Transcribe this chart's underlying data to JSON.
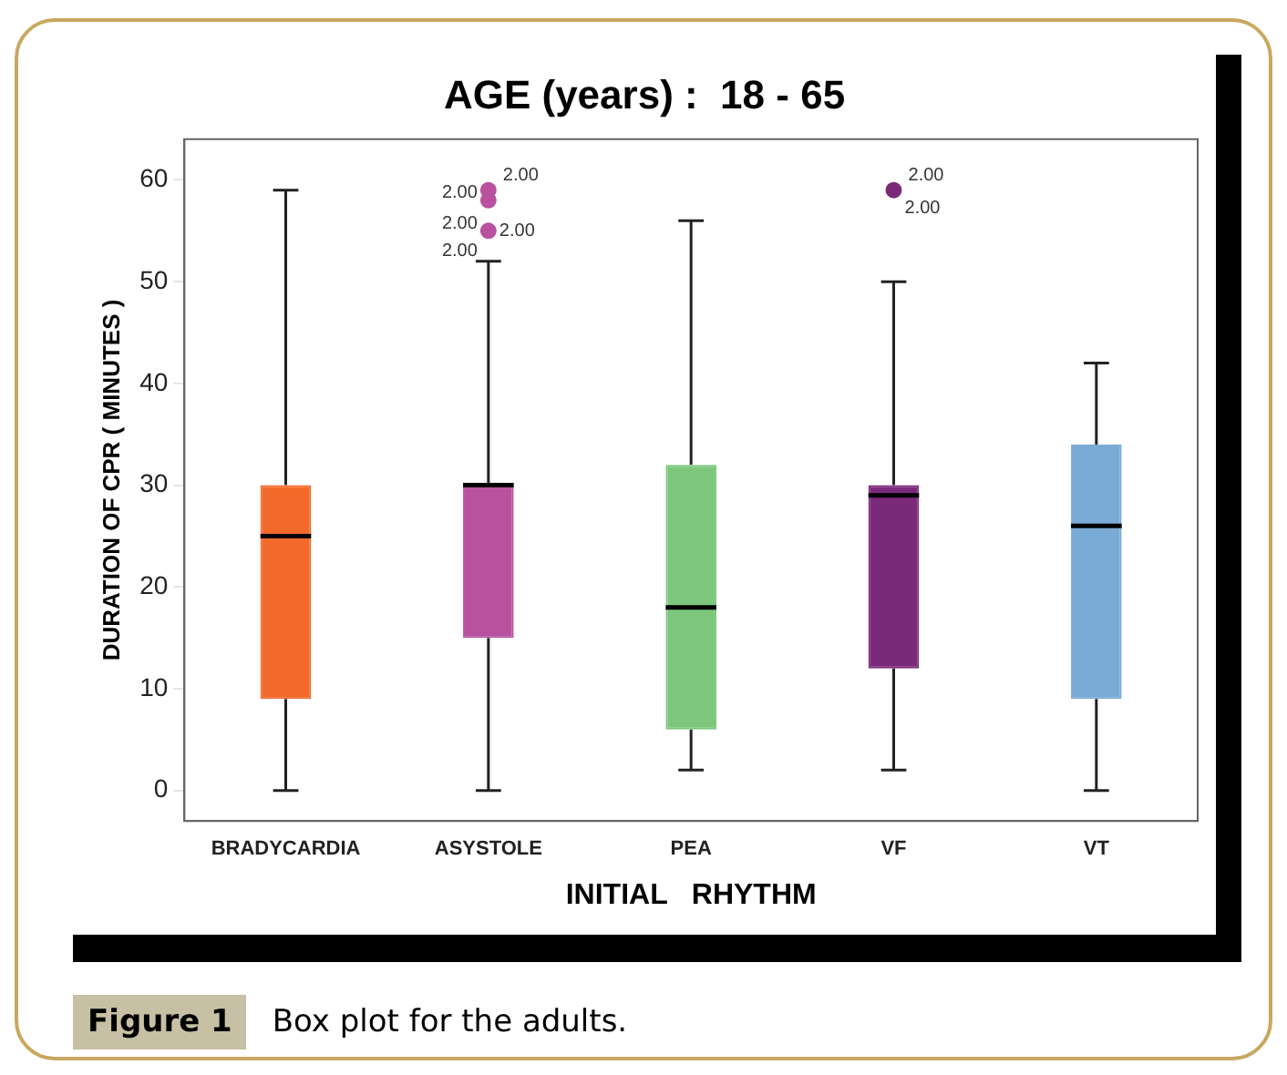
{
  "chart_data": {
    "type": "box",
    "title": "AGE (years) :  18 - 65",
    "xlabel": "INITIAL   RHYTHM",
    "ylabel": "DURATION OF CPR ( MINUTES )",
    "categories": [
      "BRADYCARDIA",
      "ASYSTOLE",
      "PEA",
      "VF",
      "VT"
    ],
    "boxes": [
      {
        "low": 0,
        "q1": 9,
        "median": 25,
        "q3": 30,
        "high": 59
      },
      {
        "low": 0,
        "q1": 15,
        "median": 30,
        "q3": 30,
        "high": 52,
        "outliers": [
          55,
          58,
          59
        ]
      },
      {
        "low": 2,
        "q1": 6,
        "median": 18,
        "q3": 32,
        "high": 56
      },
      {
        "low": 2,
        "q1": 12,
        "median": 29,
        "q3": 30,
        "high": 50,
        "outliers": [
          59
        ]
      },
      {
        "low": 0,
        "q1": 9,
        "median": 26,
        "q3": 34,
        "high": 42
      }
    ],
    "colors": [
      "#f26a2a",
      "#b9519f",
      "#7dc77d",
      "#7b2a7a",
      "#7aaad6"
    ],
    "ylim": [
      -3,
      64
    ],
    "yticks": [
      0,
      10,
      20,
      30,
      40,
      50,
      60
    ],
    "grid": false,
    "legend": false,
    "annotations": [
      "2.00",
      "2.00",
      "2.00",
      "2.00",
      "2.00",
      "2.00",
      "2.00",
      "Figure 1",
      "Box plot for the adults."
    ]
  }
}
